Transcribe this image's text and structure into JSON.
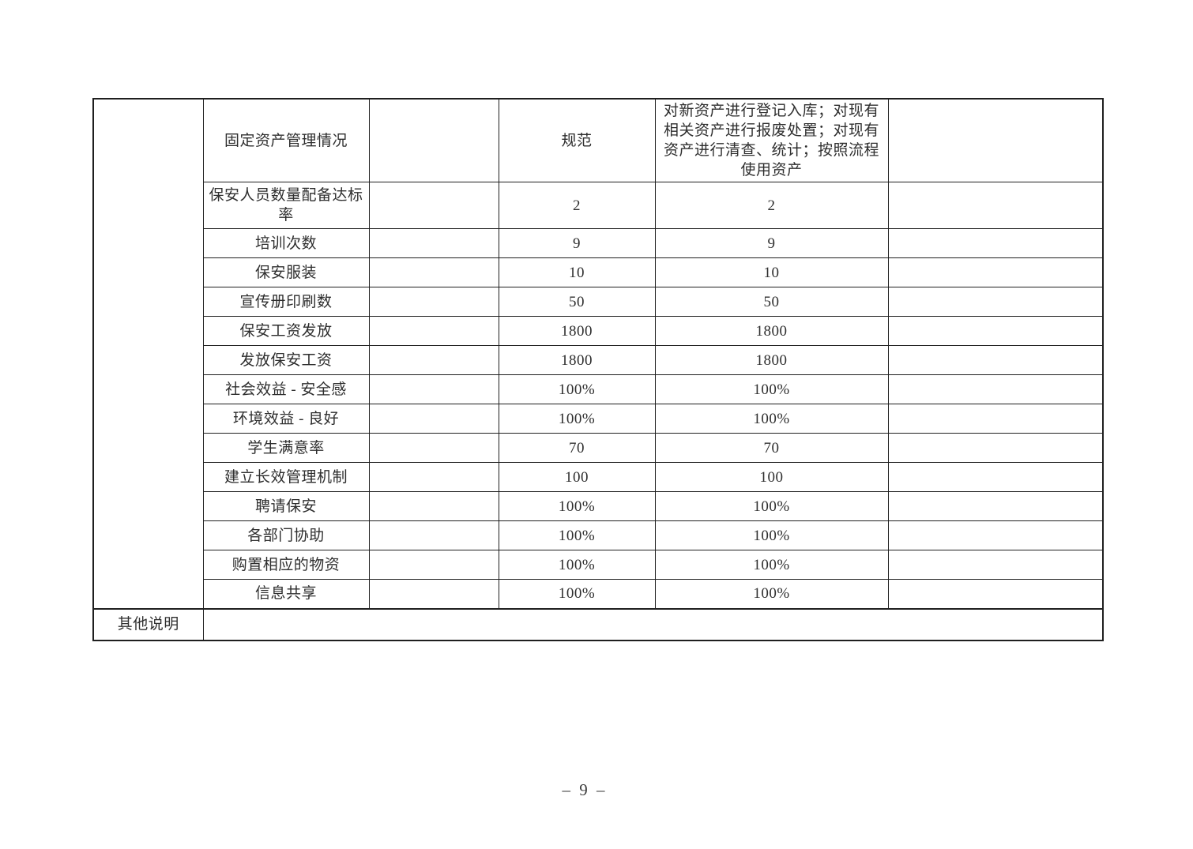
{
  "page": {
    "page_number": "– 9 –",
    "background_color": "#ffffff",
    "border_color": "#1f1f1f",
    "text_color": "#2e2e2e"
  },
  "table": {
    "rows": [
      {
        "label": "固定资产管理情况",
        "value1": "规范",
        "value2": "对新资产进行登记入库；对现有相关资产进行报废处置；对现有资产进行清查、统计；按照流程使用资产"
      },
      {
        "label": "保安人员数量配备达标率",
        "value1": "2",
        "value2": "2"
      },
      {
        "label": "培训次数",
        "value1": "9",
        "value2": "9"
      },
      {
        "label": "保安服装",
        "value1": "10",
        "value2": "10"
      },
      {
        "label": "宣传册印刷数",
        "value1": "50",
        "value2": "50"
      },
      {
        "label": "保安工资发放",
        "value1": "1800",
        "value2": "1800"
      },
      {
        "label": "发放保安工资",
        "value1": "1800",
        "value2": "1800"
      },
      {
        "label": "社会效益 - 安全感",
        "value1": "100%",
        "value2": "100%"
      },
      {
        "label": "环境效益 - 良好",
        "value1": "100%",
        "value2": "100%"
      },
      {
        "label": "学生满意率",
        "value1": "70",
        "value2": "70"
      },
      {
        "label": "建立长效管理机制",
        "value1": "100",
        "value2": "100"
      },
      {
        "label": "聘请保安",
        "value1": "100%",
        "value2": "100%"
      },
      {
        "label": "各部门协助",
        "value1": "100%",
        "value2": "100%"
      },
      {
        "label": "购置相应的物资",
        "value1": "100%",
        "value2": "100%"
      },
      {
        "label": "信息共享",
        "value1": "100%",
        "value2": "100%"
      }
    ],
    "footer": {
      "label": "其他说明",
      "content": ""
    }
  }
}
